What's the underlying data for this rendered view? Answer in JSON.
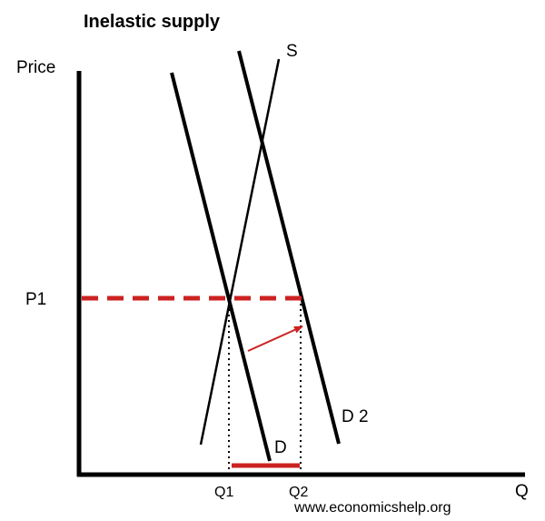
{
  "title": "Inelastic supply",
  "axes": {
    "y_label": "Price",
    "x_label": "Q"
  },
  "curves": {
    "supply": "S",
    "demand_original": "D",
    "demand_new": "D 2"
  },
  "levels": {
    "price": "P1",
    "quantity_1": "Q1",
    "quantity_2": "Q2"
  },
  "credit": "www.economicshelp.org",
  "colors": {
    "curves": "#000000",
    "highlight": "#cc2222",
    "arrow": "#cc2222"
  }
}
